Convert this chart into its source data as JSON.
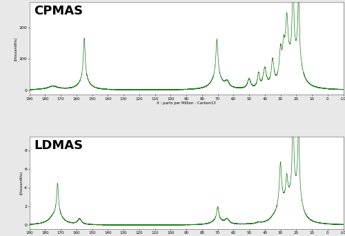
{
  "title_top": "CPMAS",
  "title_bottom": "LDMAS",
  "xlabel": "X : parts per Million : Carbon13",
  "ylabel": "(thousandths)",
  "x_min": -10.0,
  "x_max": 190.0,
  "cpmas_ylim": [
    -15,
    280
  ],
  "ldmas_ylim": [
    -0.4,
    9.5
  ],
  "cpmas_yticks": [
    0,
    100.0,
    200.0
  ],
  "ldmas_yticks": [
    0,
    2.0,
    4.0,
    6.0,
    8.0
  ],
  "xticks": [
    190.0,
    180.0,
    170.0,
    160.0,
    150.0,
    140.0,
    130.0,
    120.0,
    110.0,
    100.0,
    90.0,
    80.0,
    70.0,
    60.0,
    50.0,
    40.0,
    30.0,
    20.0,
    10.0,
    0.0,
    -10.0
  ],
  "line_color": "#1a7a1a",
  "bg_color": "#ffffff",
  "outer_bg": "#e8e8e8"
}
